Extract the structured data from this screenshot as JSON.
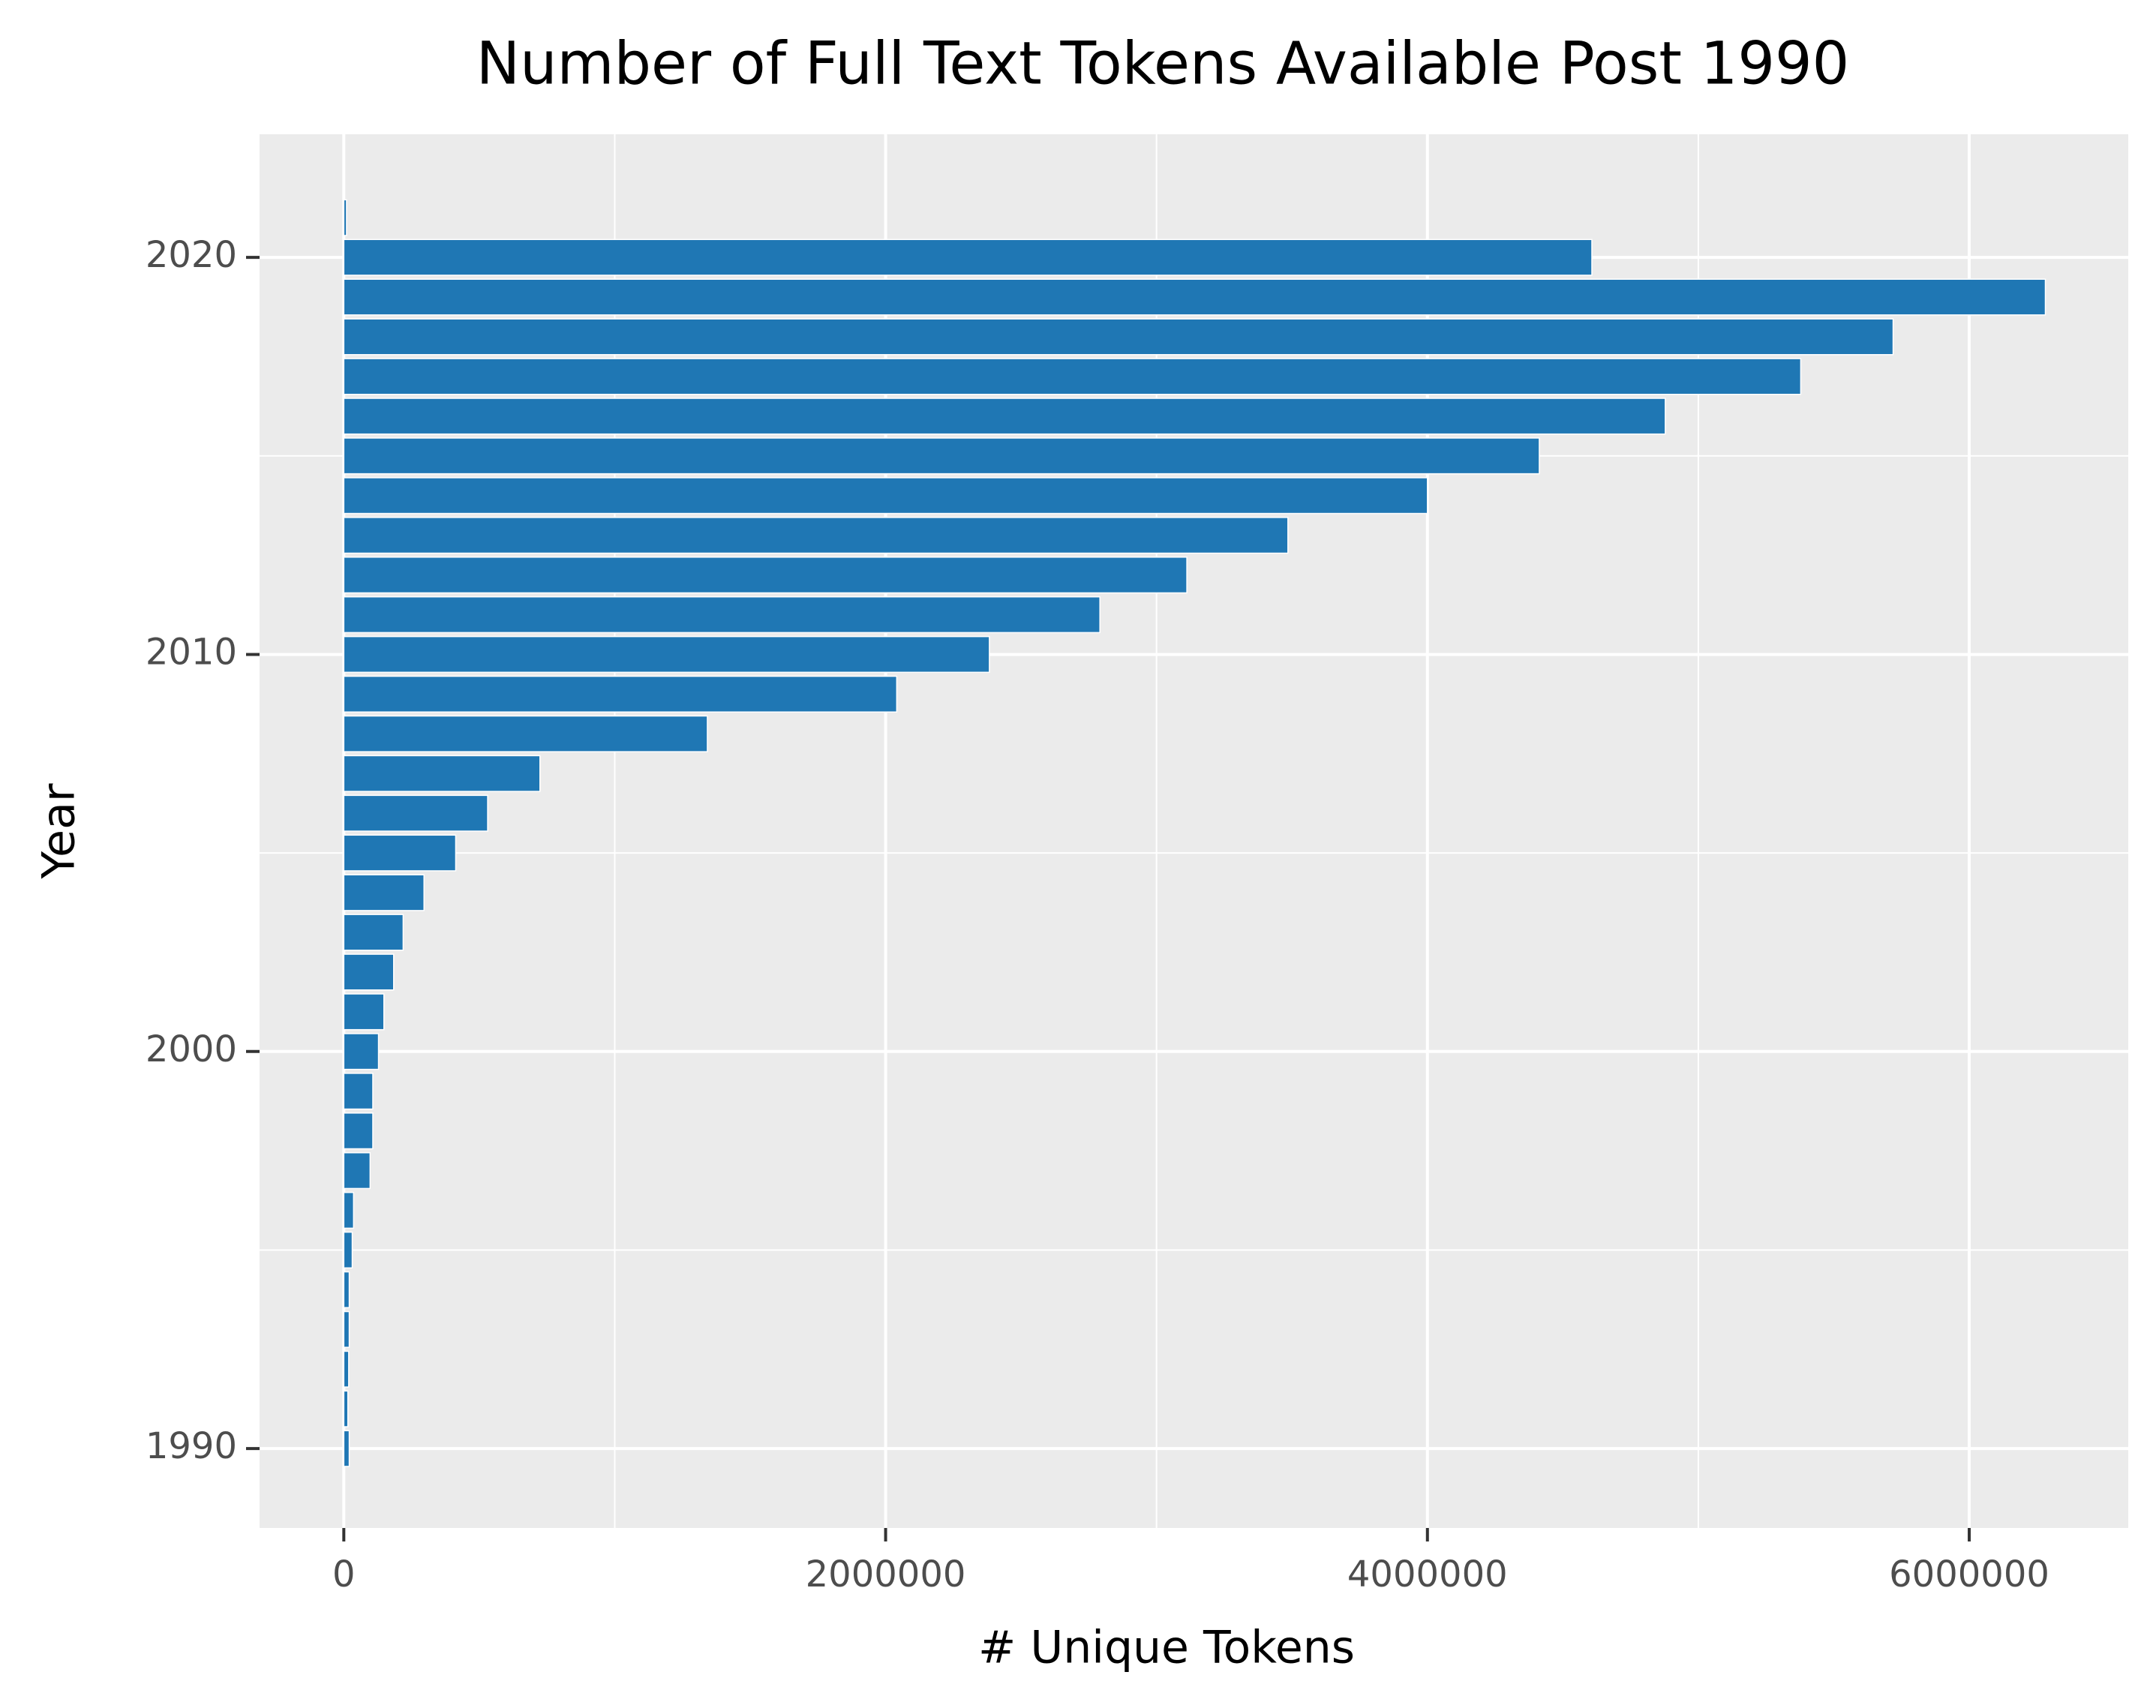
{
  "chart_data": {
    "type": "barh",
    "title": "Number of Full Text Tokens Available Post 1990",
    "xlabel": "# Unique Tokens",
    "ylabel": "Year",
    "color": "#1f77b4",
    "y": [
      1990,
      1991,
      1992,
      1993,
      1994,
      1995,
      1996,
      1997,
      1998,
      1999,
      2000,
      2001,
      2002,
      2003,
      2004,
      2005,
      2006,
      2007,
      2008,
      2009,
      2010,
      2011,
      2012,
      2013,
      2014,
      2015,
      2016,
      2017,
      2018,
      2019,
      2020,
      2021
    ],
    "values": [
      20000,
      15000,
      18000,
      20000,
      20000,
      31000,
      36000,
      97000,
      107000,
      107000,
      128000,
      148000,
      184000,
      219000,
      296000,
      413000,
      531000,
      724000,
      1342000,
      2041000,
      2383000,
      2791000,
      3112000,
      3485000,
      4000000,
      4413000,
      4878000,
      5378000,
      5719000,
      6281000,
      4607000,
      10000
    ],
    "xlim": [
      -311000,
      6587000
    ],
    "xticks": [
      0,
      2000000,
      4000000,
      6000000
    ],
    "ylim": [
      1988,
      2023.1
    ],
    "yticks": [
      1990,
      2000,
      2010,
      2020
    ],
    "grid": true
  }
}
